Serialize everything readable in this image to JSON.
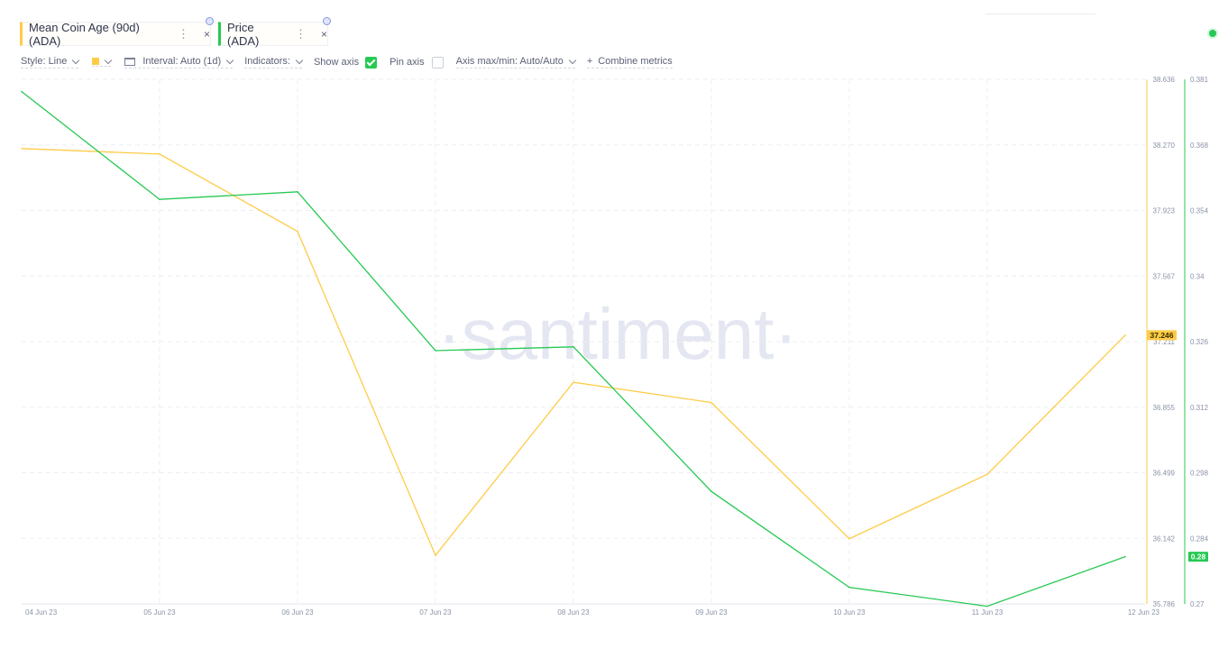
{
  "tabs": [
    {
      "label": "Mean Coin Age (90d) (ADA)",
      "color": "#ffcb47"
    },
    {
      "label": "Price (ADA)",
      "color": "#26c953"
    }
  ],
  "tab_icons": {
    "more": "⋮",
    "close": "×"
  },
  "toolbar": {
    "style_label": "Style: Line",
    "interval_label": "Interval: Auto (1d)",
    "indicators_label": "Indicators:",
    "show_axis_label": "Show axis",
    "show_axis_checked": true,
    "pin_axis_label": "Pin axis",
    "pin_axis_checked": false,
    "axis_maxmin_label": "Axis max/min: Auto/Auto",
    "combine_icon": "+",
    "combine_label": "Combine metrics"
  },
  "watermark": "·santiment·",
  "chart_data": {
    "type": "line",
    "x": [
      "04 Jun 23",
      "05 Jun 23",
      "06 Jun 23",
      "07 Jun 23",
      "08 Jun 23",
      "09 Jun 23",
      "10 Jun 23",
      "11 Jun 23",
      "12 Jun 23"
    ],
    "series": [
      {
        "name": "Mean Coin Age (90d) (ADA)",
        "color": "#ffcb47",
        "axis": "left",
        "values": [
          38.26,
          38.23,
          37.81,
          36.05,
          36.99,
          36.88,
          36.14,
          36.49,
          37.246
        ]
      },
      {
        "name": "Price (ADA)",
        "color": "#26c953",
        "axis": "right",
        "values": [
          0.3784,
          0.3556,
          0.3572,
          0.3236,
          0.3244,
          0.2938,
          0.2735,
          0.2695,
          0.28
        ]
      }
    ],
    "axes": {
      "left": {
        "ticks": [
          "38.636",
          "38.270",
          "37.923",
          "37.567",
          "37.211",
          "36.855",
          "36.499",
          "36.142",
          "35.786"
        ],
        "range": [
          35.786,
          38.636
        ],
        "current_label": "37.246"
      },
      "right": {
        "ticks": [
          "0.381",
          "0.368",
          "0.354",
          "0.34",
          "0.326",
          "0.312",
          "0.298",
          "0.284",
          "0.27"
        ],
        "range": [
          0.27,
          0.381
        ],
        "current_label": "0.28"
      }
    },
    "grid": true
  }
}
